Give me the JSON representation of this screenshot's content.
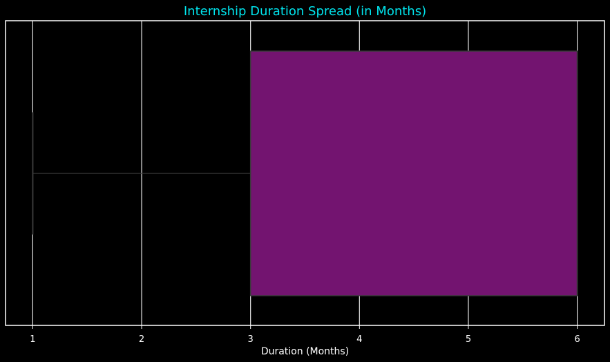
{
  "chart_data": {
    "type": "box",
    "title": "Internship Duration Spread (in Months)",
    "xlabel": "Duration (Months)",
    "ylabel": "",
    "orientation": "horizontal",
    "xlim": [
      0.75,
      6.25
    ],
    "xticks": [
      1,
      2,
      3,
      4,
      5,
      6
    ],
    "grid": true,
    "legend": "none",
    "box": {
      "whisker_low": 1,
      "q1": 3,
      "median": 6,
      "q3": 6,
      "whisker_high": 6
    }
  },
  "colors": {
    "background": "#000000",
    "box_fill": "#731470",
    "box_edge": "#3a3a3a",
    "grid": "#ffffff",
    "frame": "#ffffff",
    "text": "#ffffff",
    "title": "#00e5ee"
  }
}
